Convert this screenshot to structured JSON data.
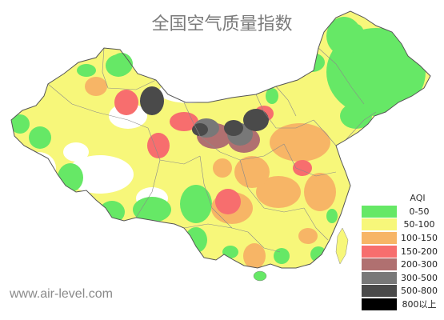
{
  "title": "全国空气质量指数",
  "watermark": "www.air-level.com",
  "legend": {
    "title": "AQI",
    "items": [
      {
        "label": "0-50",
        "color": "#66e866"
      },
      {
        "label": "50-100",
        "color": "#f7f77a"
      },
      {
        "label": "100-150",
        "color": "#f7b566"
      },
      {
        "label": "150-200",
        "color": "#f76e6e"
      },
      {
        "label": "200-300",
        "color": "#b07070"
      },
      {
        "label": "300-500",
        "color": "#787878"
      },
      {
        "label": "500-800",
        "color": "#4a4a4a"
      },
      {
        "label": "800以上",
        "color": "#000000"
      }
    ]
  }
}
